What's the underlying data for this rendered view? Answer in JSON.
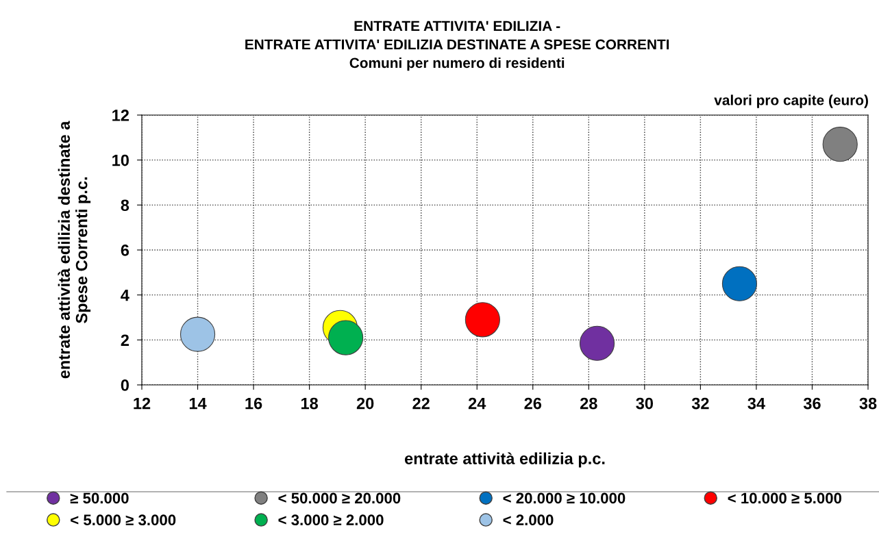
{
  "chart_data": {
    "type": "scatter",
    "title": "ENTRATE ATTIVITA' EDILIZIA -\nENTRATE ATTIVITA' EDILIZIA DESTINATE A SPESE CORRENTI\nComuni per numero di residenti",
    "xlabel": "entrate attività edilizia p.c.",
    "ylabel": "entrate attività edilizia destinate a\nSpese Correnti p.c.",
    "annotations": [
      "valori pro capite (euro)"
    ],
    "xlim": [
      12,
      38
    ],
    "xticks": [
      12,
      14,
      16,
      18,
      20,
      22,
      24,
      26,
      28,
      30,
      32,
      34,
      36,
      38
    ],
    "ylim": [
      0,
      12
    ],
    "yticks": [
      0,
      2,
      4,
      6,
      8,
      10,
      12
    ],
    "grid": true,
    "legend": "bottom",
    "marker": "circle",
    "series": [
      {
        "name": "≥ 50.000",
        "color": "#7030a0",
        "x": [
          28.3
        ],
        "values": [
          1.85
        ]
      },
      {
        "name": "< 50.000 ≥ 20.000",
        "color": "#808080",
        "x": [
          37.0
        ],
        "values": [
          10.7
        ]
      },
      {
        "name": "< 20.000 ≥ 10.000",
        "color": "#0070c0",
        "x": [
          33.4
        ],
        "values": [
          4.5
        ]
      },
      {
        "name": "< 10.000 ≥ 5.000",
        "color": "#ff0000",
        "x": [
          24.2
        ],
        "values": [
          2.9
        ]
      },
      {
        "name": "< 5.000 ≥ 3.000",
        "color": "#ffff00",
        "x": [
          19.1
        ],
        "values": [
          2.55
        ]
      },
      {
        "name": "< 3.000 ≥ 2.000",
        "color": "#00b050",
        "x": [
          19.3
        ],
        "values": [
          2.1
        ]
      },
      {
        "name": "< 2.000",
        "color": "#9dc3e6",
        "x": [
          14.0
        ],
        "values": [
          2.25
        ]
      }
    ]
  }
}
